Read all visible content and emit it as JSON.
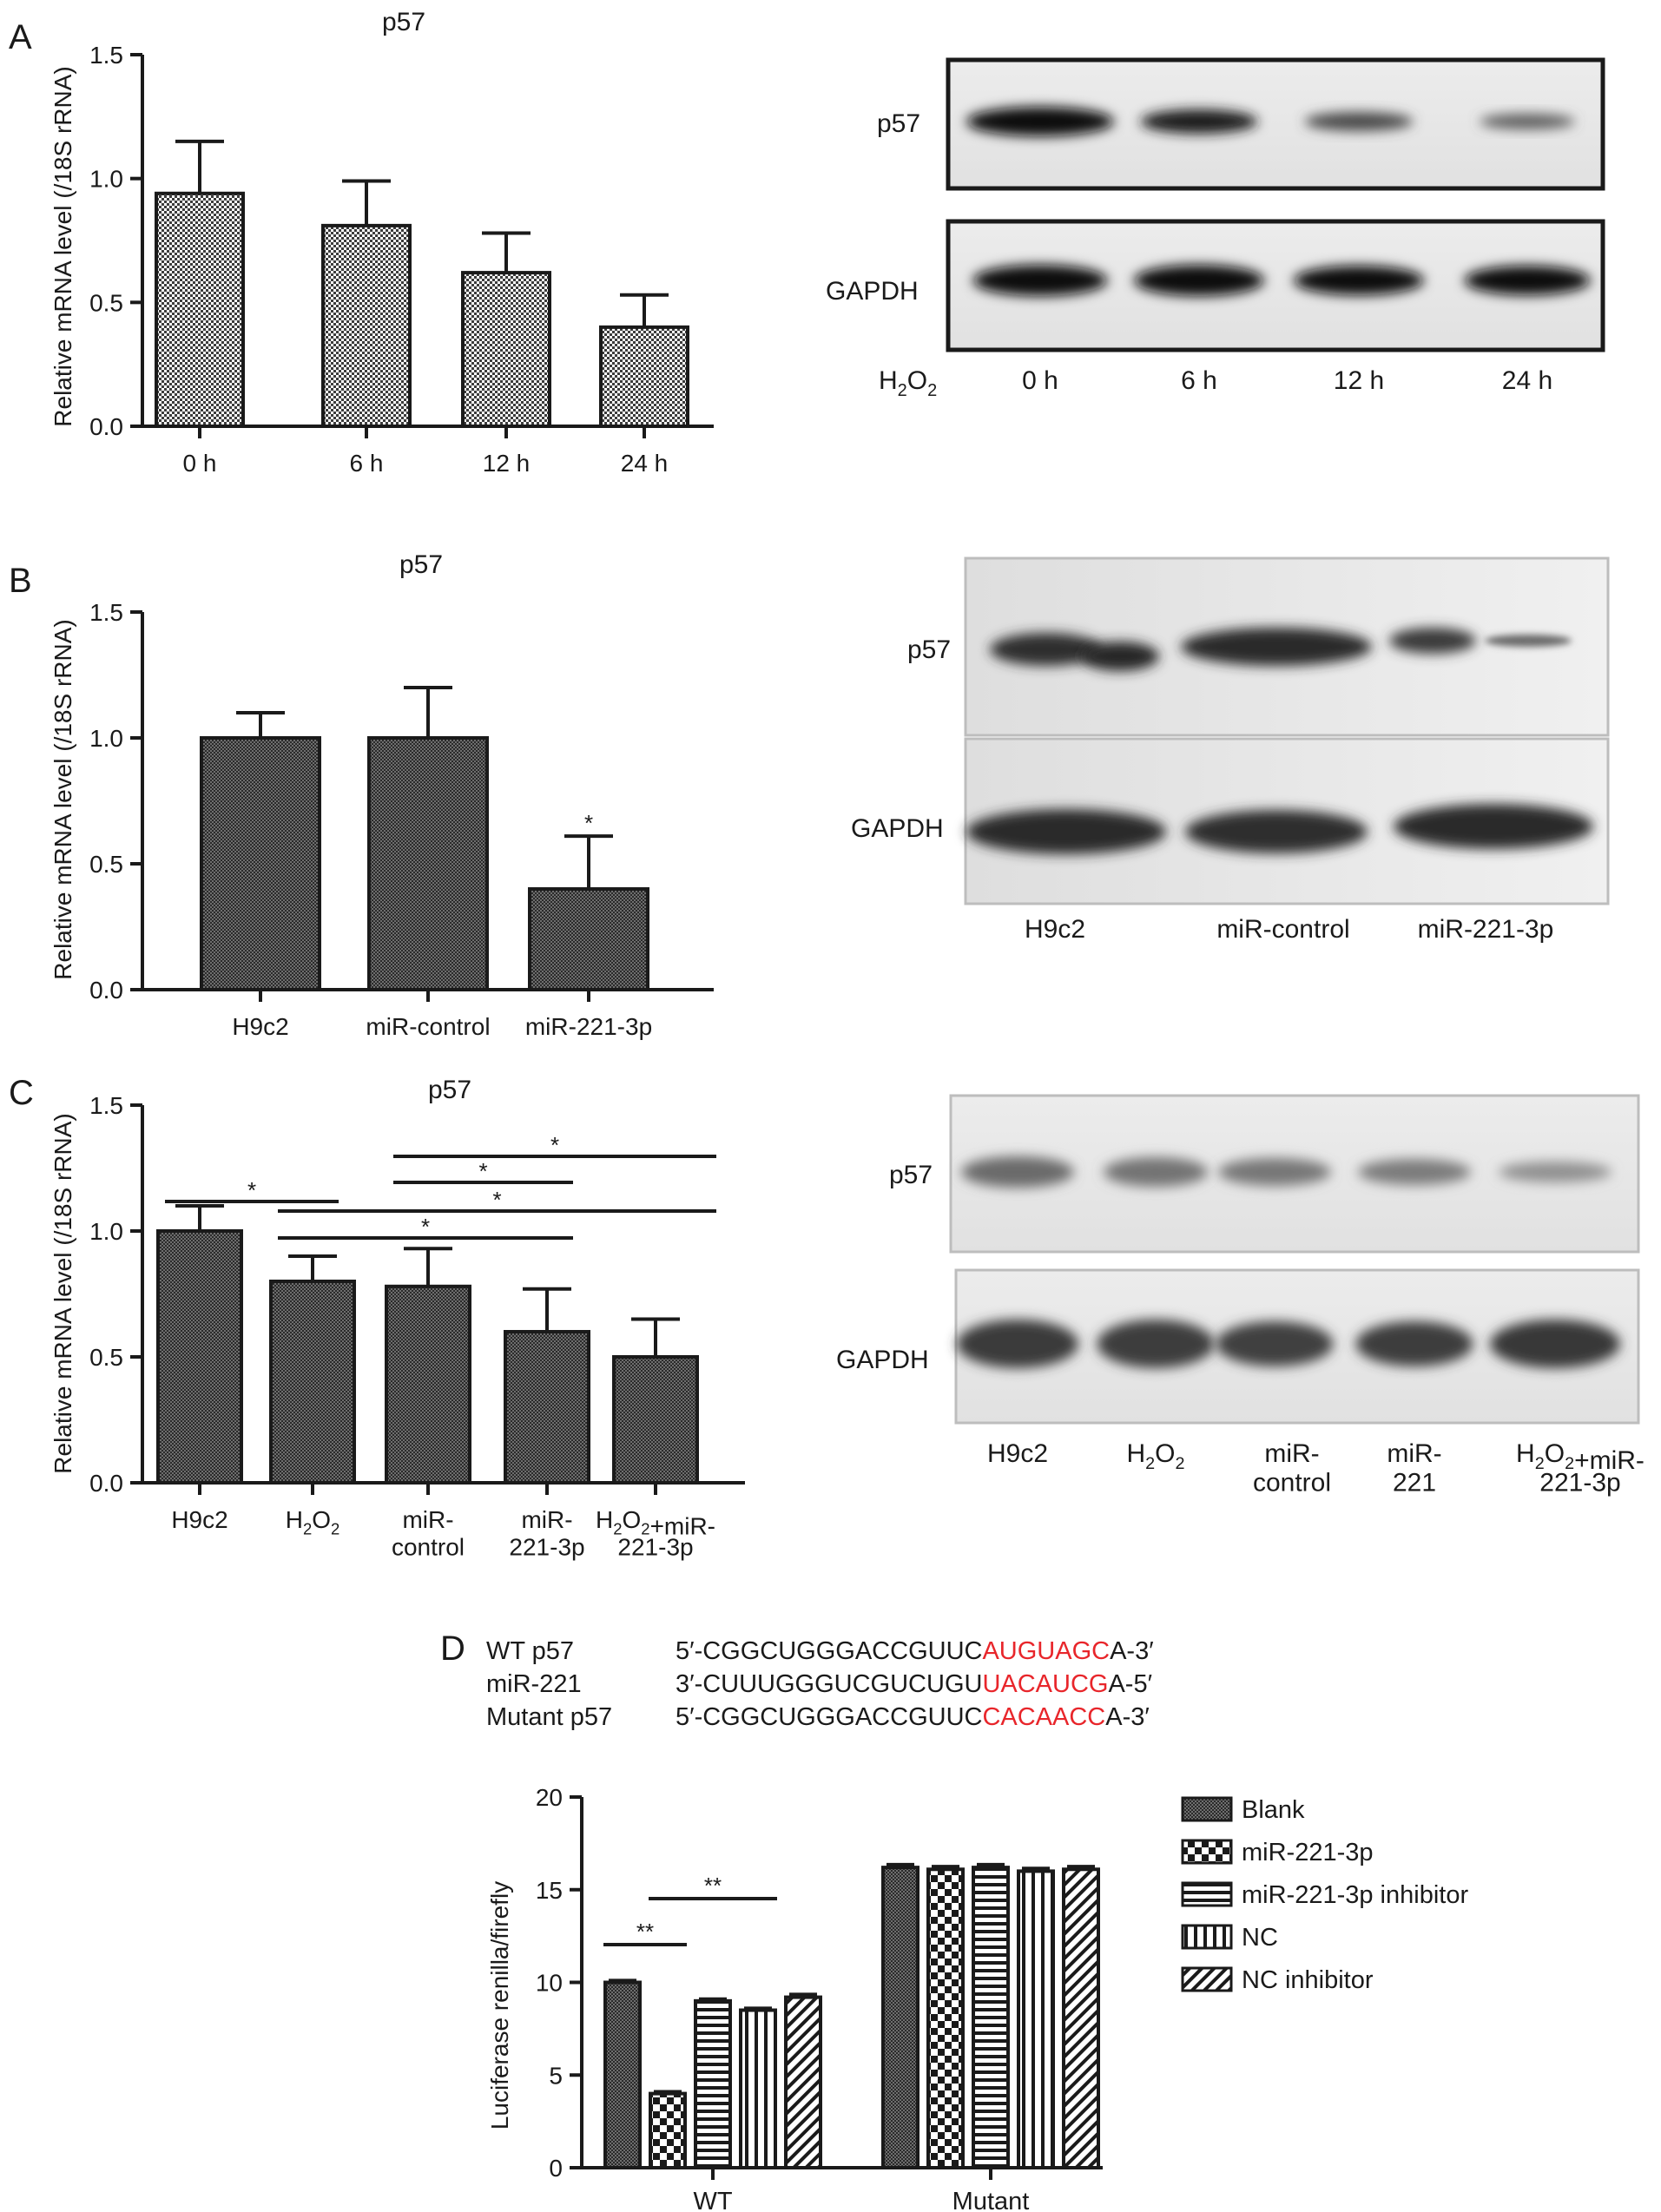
{
  "colors": {
    "ink": "#1a1a1a",
    "highlight": "#e8262b",
    "blot_bg": "#e6e6e6"
  },
  "panels": {
    "A": {
      "letter": "A",
      "blot": {
        "rows": [
          "p57",
          "GAPDH"
        ],
        "treatment": "H2O2",
        "lanes": [
          "0 h",
          "6 h",
          "12 h",
          "24 h"
        ]
      }
    },
    "B": {
      "letter": "B",
      "blot": {
        "rows": [
          "p57",
          "GAPDH"
        ],
        "lanes": [
          "H9c2",
          "miR-control",
          "miR-221-3p"
        ]
      }
    },
    "C": {
      "letter": "C",
      "blot": {
        "rows": [
          "p57",
          "GAPDH"
        ],
        "lanes": [
          "H9c2",
          "H2O2",
          "miR-control",
          "miR-221",
          "H2O2+miR-221-3p"
        ]
      },
      "significance": [
        {
          "from": 0,
          "to": 1,
          "label": "*"
        },
        {
          "from": 2,
          "to": 4,
          "label": "*"
        },
        {
          "from": 2,
          "to": 3,
          "label": "*"
        },
        {
          "from": 1,
          "to": 4,
          "label": "*"
        },
        {
          "from": 1,
          "to": 3,
          "label": "*"
        }
      ]
    },
    "D": {
      "letter": "D",
      "sequences": [
        {
          "name": "WT p57",
          "prefix": "5′-CGGCUGGGACCGUUC",
          "highlight": "AUGUAGC",
          "suffix": "A-3′"
        },
        {
          "name": "miR-221",
          "prefix": "3′-CUUUGGGUCGUCUGU",
          "highlight": "UACAUCG",
          "suffix": "A-5′"
        },
        {
          "name": "Mutant p57",
          "prefix": "5′-CGGCUGGGACCGUUC",
          "highlight": "CACAACC",
          "suffix": "A-3′"
        }
      ],
      "significance": [
        {
          "group": "WT",
          "from": 0,
          "to": 1,
          "label": "**"
        },
        {
          "group": "WT",
          "from": 1,
          "to": 3,
          "label": "**"
        }
      ]
    }
  },
  "chart_data": [
    {
      "type": "bar",
      "title": "p57",
      "ylabel": "Relative mRNA level (/18S rRNA)",
      "ylim": [
        0,
        1.5
      ],
      "yticks": [
        0.0,
        0.5,
        1.0,
        1.5
      ],
      "categories": [
        "0 h",
        "6 h",
        "12 h",
        "24 h"
      ],
      "values": [
        0.94,
        0.81,
        0.62,
        0.4
      ],
      "errors": [
        0.21,
        0.18,
        0.16,
        0.13
      ]
    },
    {
      "type": "bar",
      "title": "p57",
      "ylabel": "Relative mRNA level (/18S rRNA)",
      "ylim": [
        0,
        1.5
      ],
      "yticks": [
        0.0,
        0.5,
        1.0,
        1.5
      ],
      "categories": [
        "H9c2",
        "miR-control",
        "miR-221-3p"
      ],
      "values": [
        1.0,
        1.0,
        0.4
      ],
      "errors": [
        0.1,
        0.2,
        0.21
      ],
      "annotations": [
        "",
        "",
        "*"
      ]
    },
    {
      "type": "bar",
      "title": "p57",
      "ylabel": "Relative mRNA level (/18S rRNA)",
      "ylim": [
        0,
        1.5
      ],
      "yticks": [
        0.0,
        0.5,
        1.0,
        1.5
      ],
      "categories": [
        "H9c2",
        "H2O2",
        "miR-control",
        "miR-221-3p",
        "H2O2+miR-221-3p"
      ],
      "values": [
        1.0,
        0.8,
        0.78,
        0.6,
        0.5
      ],
      "errors": [
        0.1,
        0.1,
        0.15,
        0.17,
        0.15
      ]
    },
    {
      "type": "bar",
      "ylabel": "Luciferase renilla/firefly",
      "ylim": [
        0,
        20
      ],
      "yticks": [
        0,
        5,
        10,
        15,
        20
      ],
      "categories": [
        "WT",
        "Mutant"
      ],
      "series": [
        {
          "name": "Blank",
          "values": [
            10.0,
            16.2
          ],
          "errors": [
            0.1,
            0.15
          ]
        },
        {
          "name": "miR-221-3p",
          "values": [
            4.0,
            16.1
          ],
          "errors": [
            0.1,
            0.15
          ]
        },
        {
          "name": "miR-221-3p inhibitor",
          "values": [
            9.0,
            16.2
          ],
          "errors": [
            0.1,
            0.15
          ]
        },
        {
          "name": "NC",
          "values": [
            8.5,
            16.0
          ],
          "errors": [
            0.1,
            0.15
          ]
        },
        {
          "name": "NC inhibitor",
          "values": [
            9.2,
            16.1
          ],
          "errors": [
            0.15,
            0.15
          ]
        }
      ]
    }
  ]
}
